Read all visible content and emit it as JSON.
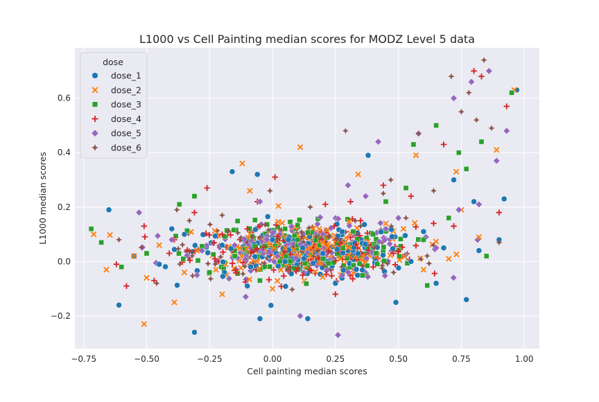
{
  "chart_data": {
    "type": "scatter",
    "title": "L1000 vs Cell Painting median scores for MODZ Level 5 data",
    "xlabel": "Cell painting median scores",
    "ylabel": "L1000 median scores",
    "xlim": [
      -0.785,
      1.06
    ],
    "ylim": [
      -0.32,
      0.785
    ],
    "xticks": [
      -0.75,
      -0.5,
      -0.25,
      0.0,
      0.25,
      0.5,
      0.75,
      1.0
    ],
    "xtick_labels": [
      "−0.75",
      "−0.50",
      "−0.25",
      "0.00",
      "0.25",
      "0.50",
      "0.75",
      "1.00"
    ],
    "yticks": [
      -0.2,
      0.0,
      0.2,
      0.4,
      0.6
    ],
    "ytick_labels": [
      "−0.2",
      "0.0",
      "0.2",
      "0.4",
      "0.6"
    ],
    "grid": true,
    "background": "#eaeaf2",
    "legend": {
      "title": "dose",
      "placement": "top-left",
      "entries": [
        {
          "name": "dose_1",
          "marker": "circle",
          "color": "#1f77b4"
        },
        {
          "name": "dose_2",
          "marker": "x",
          "color": "#ff7f0e"
        },
        {
          "name": "dose_3",
          "marker": "square",
          "color": "#2ca02c"
        },
        {
          "name": "dose_4",
          "marker": "plus",
          "color": "#d62728"
        },
        {
          "name": "dose_5",
          "marker": "diamond",
          "color": "#9467bd"
        },
        {
          "name": "dose_6",
          "marker": "star",
          "color": "#8c564b"
        }
      ]
    },
    "series": [
      {
        "name": "dose_1",
        "x": [
          -0.65,
          -0.61,
          -0.31,
          -0.16,
          -0.06,
          0.14,
          0.38,
          0.49,
          0.72,
          0.77,
          0.8,
          0.82,
          0.9,
          0.92,
          0.97,
          -0.05,
          0.12,
          0.25,
          -0.35,
          -0.55,
          -0.45,
          0.65,
          0.6,
          -0.2,
          0.05,
          0.3,
          -0.1,
          0.55,
          0.68,
          0.0,
          -0.4,
          0.2
        ],
        "y": [
          0.19,
          -0.16,
          -0.26,
          0.33,
          0.32,
          -0.21,
          0.39,
          -0.15,
          0.3,
          -0.14,
          0.22,
          0.04,
          0.08,
          0.23,
          0.63,
          -0.21,
          0.05,
          -0.08,
          0.1,
          0.02,
          -0.01,
          -0.08,
          0.11,
          0.06,
          0.0,
          0.04,
          -0.09,
          0.0,
          0.05,
          0.08,
          0.12,
          0.03
        ]
      },
      {
        "name": "dose_2",
        "x": [
          -0.51,
          -0.71,
          -0.66,
          -0.5,
          -0.39,
          0.11,
          -0.12,
          -0.09,
          0.34,
          0.57,
          0.73,
          0.89,
          0.96,
          0.27,
          -0.3,
          0.2,
          0.6,
          0.75,
          0.82,
          -0.2,
          0.05,
          0.45,
          -0.55,
          0.3,
          0.0,
          -0.45,
          0.15,
          0.7,
          0.52,
          -0.35
        ],
        "y": [
          -0.23,
          0.1,
          -0.03,
          -0.06,
          -0.15,
          0.42,
          0.36,
          0.26,
          0.32,
          0.39,
          0.33,
          0.41,
          0.63,
          0.01,
          0.04,
          0.07,
          -0.03,
          0.19,
          0.09,
          -0.12,
          0.05,
          0.14,
          0.02,
          0.05,
          -0.1,
          0.06,
          0.02,
          0.01,
          0.12,
          -0.04
        ]
      },
      {
        "name": "dose_3",
        "x": [
          -0.72,
          -0.68,
          -0.31,
          -0.37,
          0.56,
          0.65,
          0.74,
          0.77,
          0.83,
          0.95,
          -0.5,
          0.1,
          0.28,
          0.4,
          -0.15,
          0.45,
          0.2,
          -0.05,
          0.6,
          0.85,
          -0.25,
          0.05,
          0.32,
          0.7,
          0.53,
          -0.6
        ],
        "y": [
          0.12,
          0.07,
          0.24,
          0.21,
          0.43,
          0.5,
          0.4,
          0.34,
          0.44,
          0.62,
          0.03,
          0.08,
          0.05,
          0.1,
          0.02,
          0.22,
          0.01,
          -0.07,
          0.08,
          0.02,
          -0.04,
          0.12,
          0.11,
          0.16,
          0.27,
          -0.02
        ]
      },
      {
        "name": "dose_4",
        "x": [
          -0.62,
          -0.58,
          -0.51,
          -0.41,
          -0.39,
          -0.31,
          -0.26,
          -0.06,
          0.01,
          0.21,
          0.31,
          0.44,
          0.68,
          0.8,
          0.83,
          0.93,
          0.9,
          0.64,
          0.55,
          0.12,
          -0.2,
          0.35,
          -0.47,
          0.48,
          0.25,
          0.72,
          -0.1,
          0.4
        ],
        "y": [
          -0.01,
          -0.09,
          0.13,
          0.03,
          0.08,
          0.18,
          0.27,
          0.22,
          0.31,
          0.21,
          0.22,
          0.28,
          0.43,
          0.7,
          0.68,
          0.57,
          0.18,
          0.14,
          0.24,
          -0.05,
          0.1,
          0.15,
          -0.07,
          0.03,
          -0.12,
          0.13,
          0.12,
          -0.02
        ]
      },
      {
        "name": "dose_5",
        "x": [
          -0.53,
          -0.28,
          -0.05,
          0.11,
          0.42,
          0.72,
          0.79,
          0.86,
          0.89,
          0.93,
          0.58,
          0.3,
          -0.15,
          0.2,
          0.5,
          0.74,
          0.02,
          0.37,
          -0.4,
          0.82,
          0.26,
          0.65,
          -0.3,
          0.45
        ],
        "y": [
          0.18,
          0.04,
          0.22,
          -0.2,
          0.44,
          0.6,
          0.66,
          0.7,
          0.37,
          0.48,
          0.47,
          0.28,
          0.06,
          0.1,
          0.16,
          0.19,
          0.02,
          0.24,
          0.08,
          0.21,
          -0.27,
          0.05,
          -0.05,
          0.12
        ]
      },
      {
        "name": "dose_6",
        "x": [
          -0.61,
          -0.38,
          -0.01,
          0.29,
          0.44,
          0.71,
          0.75,
          0.78,
          0.81,
          0.84,
          0.87,
          0.58,
          0.47,
          0.35,
          0.15,
          -0.2,
          -0.46,
          0.64,
          0.18,
          -0.08,
          0.53,
          0.9,
          0.06,
          -0.33
        ],
        "y": [
          0.08,
          0.19,
          0.26,
          0.48,
          0.25,
          0.68,
          0.55,
          0.62,
          0.52,
          0.74,
          0.49,
          0.47,
          0.3,
          0.13,
          0.2,
          0.17,
          -0.08,
          0.26,
          0.04,
          0.09,
          0.16,
          0.07,
          -0.03,
          0.15
        ]
      }
    ],
    "background_cloud_note": "",
    "cloud": {
      "center_x": 0.12,
      "center_y": 0.04
    }
  }
}
